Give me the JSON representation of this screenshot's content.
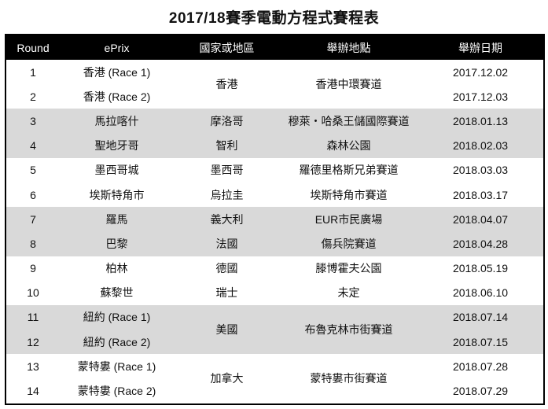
{
  "title": "2017/18賽季電動方程式賽程表",
  "shade_color": "#d9d9d9",
  "headers": [
    "Round",
    "ePrix",
    "國家或地區",
    "舉辦地點",
    "舉辦日期"
  ],
  "rows": [
    {
      "round": "1",
      "eprix": "香港 (Race 1)",
      "country": "香港",
      "venue": "香港中環賽道",
      "span": 2,
      "date": "2017.12.02",
      "shade": false
    },
    {
      "round": "2",
      "eprix": "香港 (Race 2)",
      "date": "2017.12.03",
      "shade": false
    },
    {
      "round": "3",
      "eprix": "馬拉喀什",
      "country": "摩洛哥",
      "venue": "穆萊・哈桑王儲國際賽道",
      "span": 1,
      "date": "2018.01.13",
      "shade": true
    },
    {
      "round": "4",
      "eprix": "聖地牙哥",
      "country": "智利",
      "venue": "森林公園",
      "span": 1,
      "date": "2018.02.03",
      "shade": true
    },
    {
      "round": "5",
      "eprix": "墨西哥城",
      "country": "墨西哥",
      "venue": "羅德里格斯兄弟賽道",
      "span": 1,
      "date": "2018.03.03",
      "shade": false
    },
    {
      "round": "6",
      "eprix": "埃斯特角市",
      "country": "烏拉圭",
      "venue": "埃斯特角市賽道",
      "span": 1,
      "date": "2018.03.17",
      "shade": false
    },
    {
      "round": "7",
      "eprix": "羅馬",
      "country": "義大利",
      "venue": "EUR市民廣場",
      "span": 1,
      "date": "2018.04.07",
      "shade": true
    },
    {
      "round": "8",
      "eprix": "巴黎",
      "country": "法國",
      "venue": "傷兵院賽道",
      "span": 1,
      "date": "2018.04.28",
      "shade": true
    },
    {
      "round": "9",
      "eprix": "柏林",
      "country": "德國",
      "venue": "滕博霍夫公園",
      "span": 1,
      "date": "2018.05.19",
      "shade": false
    },
    {
      "round": "10",
      "eprix": "蘇黎世",
      "country": "瑞士",
      "venue": "未定",
      "span": 1,
      "date": "2018.06.10",
      "shade": false
    },
    {
      "round": "11",
      "eprix": "紐約 (Race 1)",
      "country": "美國",
      "venue": "布魯克林市街賽道",
      "span": 2,
      "date": "2018.07.14",
      "shade": true
    },
    {
      "round": "12",
      "eprix": "紐約 (Race 2)",
      "date": "2018.07.15",
      "shade": true
    },
    {
      "round": "13",
      "eprix": "蒙特婁 (Race 1)",
      "country": "加拿大",
      "venue": "蒙特婁市街賽道",
      "span": 2,
      "date": "2018.07.28",
      "shade": false
    },
    {
      "round": "14",
      "eprix": "蒙特婁 (Race 2)",
      "date": "2018.07.29",
      "shade": false
    }
  ]
}
